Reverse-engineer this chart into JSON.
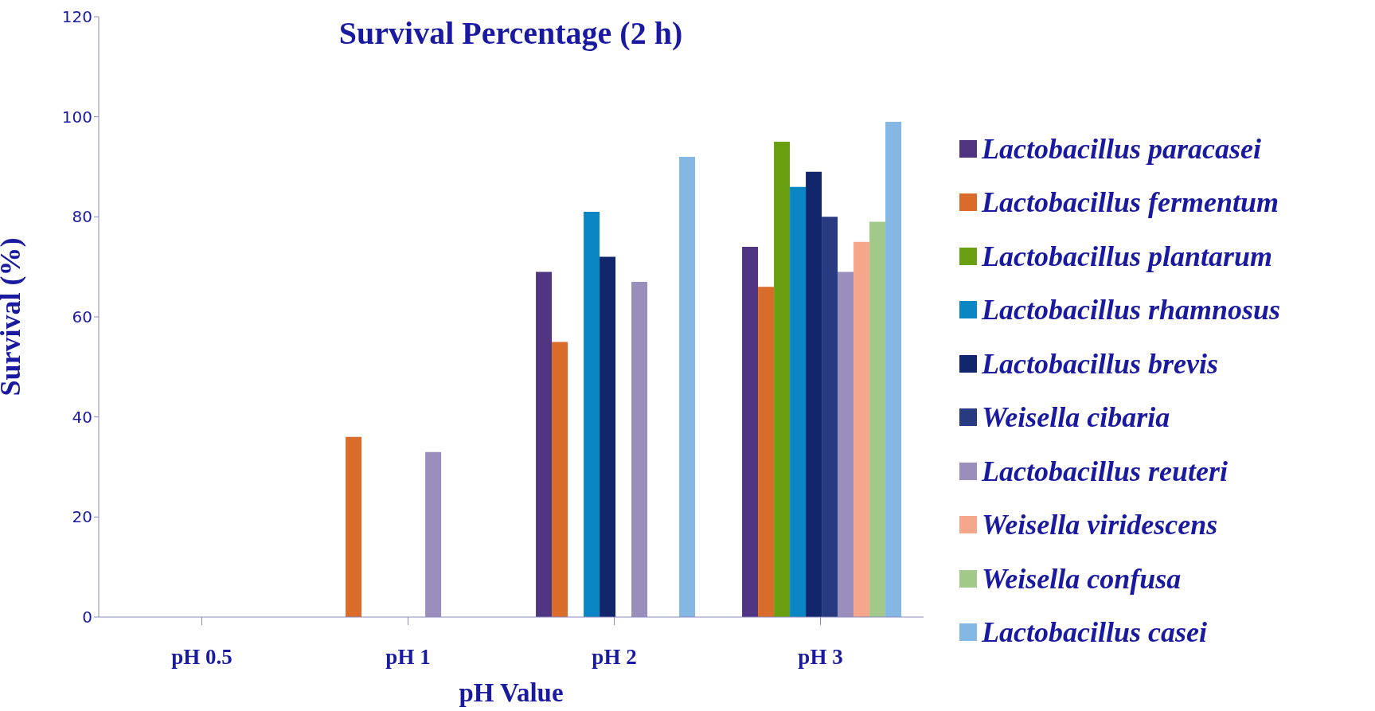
{
  "chart_data": {
    "type": "bar",
    "title": "Survival Percentage (2 h)",
    "xlabel": "pH Value",
    "ylabel": "Survival (%)",
    "categories": [
      "pH 0.5",
      "pH 1",
      "pH 2",
      "pH 3"
    ],
    "series": [
      {
        "name": "Lactobacillus paracasei",
        "color": "#4f3582",
        "values": [
          0,
          0,
          69,
          74
        ]
      },
      {
        "name": "Lactobacillus fermentum",
        "color": "#d96b2b",
        "values": [
          0,
          36,
          55,
          66
        ]
      },
      {
        "name": "Lactobacillus plantarum",
        "color": "#6a9f12",
        "values": [
          0,
          0,
          0,
          95
        ]
      },
      {
        "name": "Lactobacillus rhamnosus",
        "color": "#0a86c4",
        "values": [
          0,
          0,
          81,
          86
        ]
      },
      {
        "name": "Lactobacillus brevis",
        "color": "#12276b",
        "values": [
          0,
          0,
          72,
          89
        ]
      },
      {
        "name": "Weisella cibaria",
        "color": "#283b80",
        "values": [
          0,
          0,
          0,
          80
        ]
      },
      {
        "name": "Lactobacillus reuteri",
        "color": "#9a8fbc",
        "values": [
          0,
          33,
          67,
          69
        ]
      },
      {
        "name": "Weisella viridescens",
        "color": "#f4a78a",
        "values": [
          0,
          0,
          0,
          75
        ]
      },
      {
        "name": "Weisella confusa",
        "color": "#a3c98a",
        "values": [
          0,
          0,
          0,
          79
        ]
      },
      {
        "name": "Lactobacillus casei",
        "color": "#84b7e4",
        "values": [
          0,
          0,
          92,
          99
        ]
      }
    ],
    "ylim": [
      0,
      120
    ],
    "yticks": [
      0,
      20,
      40,
      60,
      80,
      100,
      120
    ],
    "grid": false,
    "legend": "right"
  }
}
